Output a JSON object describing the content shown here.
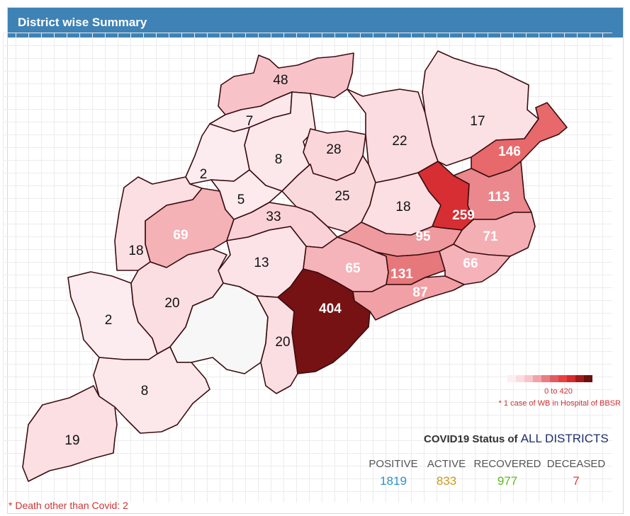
{
  "header": {
    "title": "District wise Summary"
  },
  "map": {
    "scale_max": 420,
    "districts": [
      {
        "id": "d48",
        "value": "48",
        "n": 48
      },
      {
        "id": "d7",
        "value": "7",
        "n": 7
      },
      {
        "id": "d8a",
        "value": "8",
        "n": 8
      },
      {
        "id": "d28",
        "value": "28",
        "n": 28
      },
      {
        "id": "d22",
        "value": "22",
        "n": 22
      },
      {
        "id": "d17",
        "value": "17",
        "n": 17
      },
      {
        "id": "d146",
        "value": "146",
        "n": 146
      },
      {
        "id": "d2a",
        "value": "2",
        "n": 2
      },
      {
        "id": "d5",
        "value": "5",
        "n": 5
      },
      {
        "id": "d25",
        "value": "25",
        "n": 25
      },
      {
        "id": "d18a",
        "value": "18",
        "n": 18
      },
      {
        "id": "d259",
        "value": "259",
        "n": 259
      },
      {
        "id": "d113",
        "value": "113",
        "n": 113
      },
      {
        "id": "d69",
        "value": "69",
        "n": 69
      },
      {
        "id": "d33",
        "value": "33",
        "n": 33
      },
      {
        "id": "d95",
        "value": "95",
        "n": 95
      },
      {
        "id": "d71",
        "value": "71",
        "n": 71
      },
      {
        "id": "d18b",
        "value": "18",
        "n": 18
      },
      {
        "id": "d13",
        "value": "13",
        "n": 13
      },
      {
        "id": "d65",
        "value": "65",
        "n": 65
      },
      {
        "id": "d131",
        "value": "131",
        "n": 131
      },
      {
        "id": "d66",
        "value": "66",
        "n": 66
      },
      {
        "id": "d87",
        "value": "87",
        "n": 87
      },
      {
        "id": "d2b",
        "value": "2",
        "n": 2
      },
      {
        "id": "d20a",
        "value": "20",
        "n": 20
      },
      {
        "id": "d404",
        "value": "404",
        "n": 404
      },
      {
        "id": "dnone",
        "value": "",
        "n": 0
      },
      {
        "id": "d20b",
        "value": "20",
        "n": 20
      },
      {
        "id": "d8b",
        "value": "8",
        "n": 8
      },
      {
        "id": "d19",
        "value": "19",
        "n": 19
      }
    ]
  },
  "legend": {
    "colors": [
      "#fdeef0",
      "#fbdde1",
      "#f8c4ca",
      "#f2a3a9",
      "#e87d82",
      "#e05c60",
      "#e8413f",
      "#d42a30",
      "#a31919",
      "#6b0f0f"
    ],
    "range": "0 to 420",
    "note": "* 1 case of WB in Hospital of BBSR"
  },
  "status": {
    "title_prefix": "COVID19 Status of",
    "title_emphasis": "ALL DISTRICTS",
    "items": [
      {
        "label": "POSITIVE",
        "value": "1819",
        "color": "#2a93c8"
      },
      {
        "label": "ACTIVE",
        "value": "833",
        "color": "#c89a1a"
      },
      {
        "label": "RECOVERED",
        "value": "977",
        "color": "#5bbd1e"
      },
      {
        "label": "DECEASED",
        "value": "7",
        "color": "#e23d3d"
      }
    ]
  },
  "footnote": "* Death other than Covid: 2"
}
